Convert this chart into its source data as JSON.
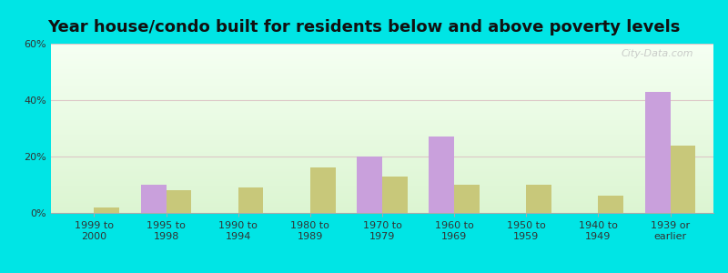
{
  "title": "Year house/condo built for residents below and above poverty levels",
  "categories": [
    "1999 to\n2000",
    "1995 to\n1998",
    "1990 to\n1994",
    "1980 to\n1989",
    "1970 to\n1979",
    "1960 to\n1969",
    "1950 to\n1959",
    "1940 to\n1949",
    "1939 or\nearlier"
  ],
  "below_poverty": [
    0,
    10,
    0,
    0,
    20,
    27,
    0,
    0,
    43
  ],
  "above_poverty": [
    2,
    8,
    9,
    16,
    13,
    10,
    10,
    6,
    24
  ],
  "below_color": "#c9a0dc",
  "above_color": "#c8c87a",
  "ylim": [
    0,
    60
  ],
  "yticks": [
    0,
    20,
    40,
    60
  ],
  "ytick_labels": [
    "0%",
    "20%",
    "40%",
    "60%"
  ],
  "grid_color": "#ddc8c8",
  "outer_bg": "#00e5e5",
  "bar_width": 0.35,
  "watermark": "City-Data.com",
  "title_fontsize": 13,
  "tick_fontsize": 8,
  "legend_fontsize": 9
}
